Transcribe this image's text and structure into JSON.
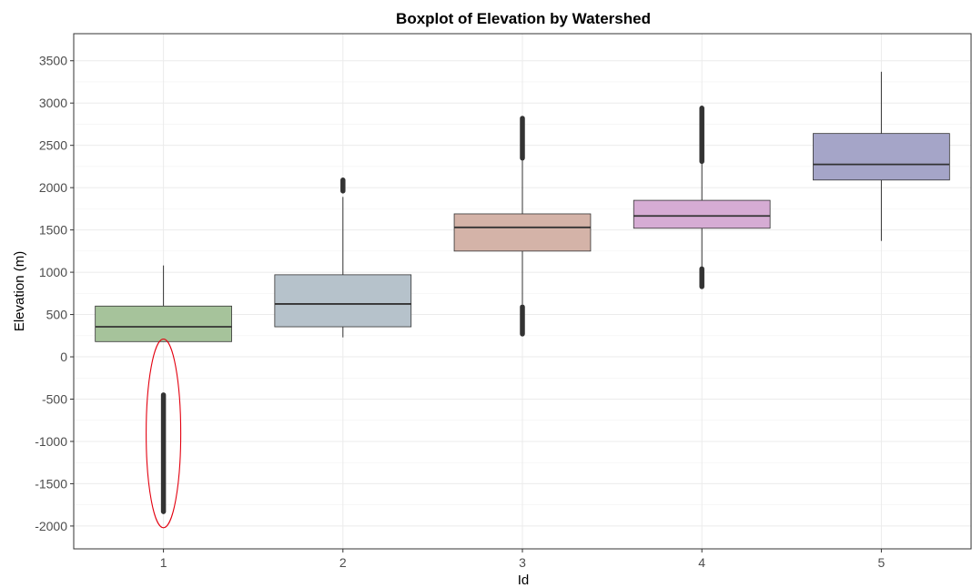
{
  "chart_data": {
    "type": "boxplot",
    "title": "Boxplot of Elevation by Watershed",
    "xlabel": "Id",
    "ylabel": "Elevation (m)",
    "categories": [
      "1",
      "2",
      "3",
      "4",
      "5"
    ],
    "y_ticks": [
      "-2000",
      "-1500",
      "-1000",
      "-500",
      "0",
      "500",
      "1000",
      "1500",
      "2000",
      "2500",
      "3000",
      "3500"
    ],
    "ylim": [
      -2270,
      3820
    ],
    "grid": true,
    "boxes": [
      {
        "id": "1",
        "whisker_low": 180,
        "q1": 180,
        "median": 355,
        "q3": 600,
        "whisker_high": 1080,
        "color": "#a6c39b",
        "outlier_ranges": [
          [
            -1830,
            -450
          ]
        ]
      },
      {
        "id": "2",
        "whisker_low": 230,
        "q1": 355,
        "median": 625,
        "q3": 970,
        "whisker_high": 1890,
        "color": "#b6c2cb",
        "outlier_ranges": [
          [
            1960,
            2090
          ]
        ]
      },
      {
        "id": "3",
        "whisker_low": 620,
        "q1": 1250,
        "median": 1530,
        "q3": 1690,
        "whisker_high": 2330,
        "color": "#d4b3a8",
        "outlier_ranges": [
          [
            270,
            590
          ],
          [
            2350,
            2820
          ]
        ]
      },
      {
        "id": "4",
        "whisker_low": 1060,
        "q1": 1520,
        "median": 1665,
        "q3": 1850,
        "whisker_high": 2290,
        "color": "#d6acd4",
        "outlier_ranges": [
          [
            830,
            1040
          ],
          [
            2310,
            2940
          ]
        ]
      },
      {
        "id": "5",
        "whisker_low": 1370,
        "q1": 2090,
        "median": 2275,
        "q3": 2640,
        "whisker_high": 3370,
        "color": "#a5a5c8",
        "outlier_ranges": []
      }
    ],
    "annotation": {
      "shape": "ellipse",
      "color": "#e3000f",
      "category": "1",
      "y_range": [
        -2020,
        210
      ]
    }
  }
}
